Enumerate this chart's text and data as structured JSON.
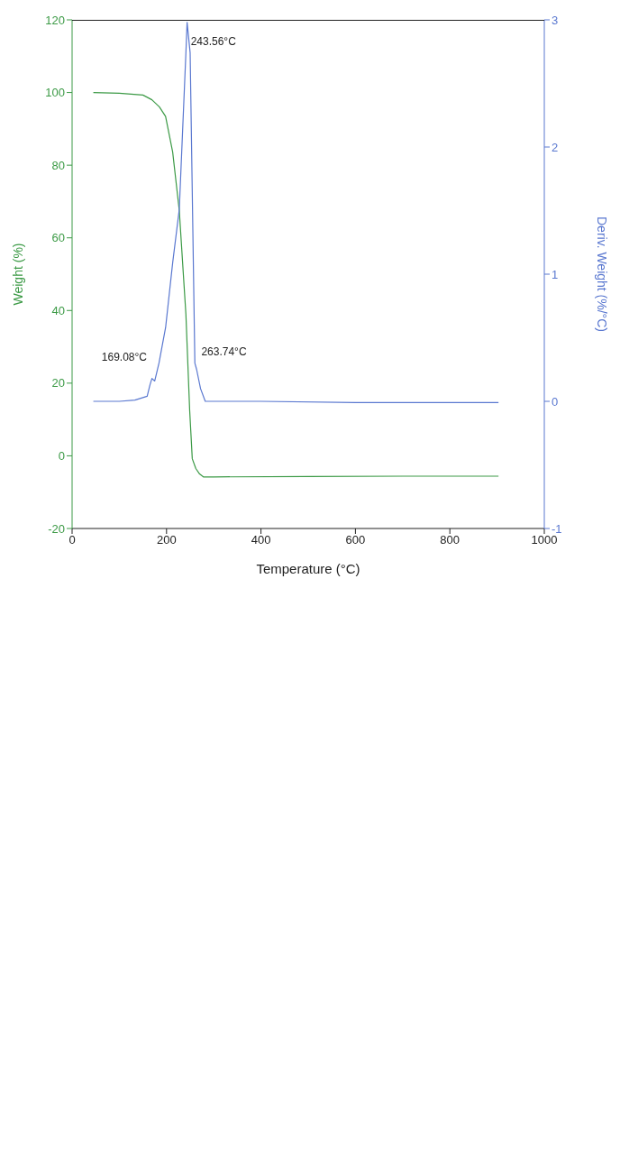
{
  "chart_data": {
    "type": "line",
    "xlabel": "Temperature (°C)",
    "ylabel": "Weight (%)",
    "y2label": "Deriv. Weight (%/°C)",
    "xlim": [
      0,
      1000
    ],
    "xticks": [
      0,
      200,
      400,
      600,
      800,
      1000
    ],
    "ylim": [
      -20,
      120
    ],
    "yticks": [
      -20,
      0,
      20,
      40,
      60,
      80,
      100,
      120
    ],
    "y2lim": [
      -1,
      3
    ],
    "y2ticks": [
      -1,
      0,
      1,
      2,
      3
    ],
    "grid": false,
    "legend": false,
    "series": [
      {
        "color": "#3c9a46",
        "x": [
          45,
          100,
          150,
          169,
          185,
          198,
          213,
          227,
          241,
          249,
          254.5,
          262,
          270,
          278,
          300,
          500,
          700,
          903
        ],
        "values": [
          100,
          99.8,
          99.3,
          98,
          96,
          93.4,
          83.6,
          67.5,
          39,
          12.5,
          -0.8,
          -3.5,
          -5,
          -5.8,
          -5.8,
          -5.7,
          -5.6,
          -5.6
        ]
      },
      {
        "color": "#5a78d0",
        "axis": "y2",
        "x": [
          45,
          100,
          133,
          159,
          165,
          169.08,
          175,
          184,
          198,
          213,
          227,
          241,
          243.56,
          250,
          260,
          263.74,
          272,
          282,
          400,
          600,
          800,
          903
        ],
        "values": [
          0,
          0,
          0.01,
          0.04,
          0.13,
          0.18,
          0.16,
          0.3,
          0.58,
          1.09,
          1.51,
          2.74,
          2.98,
          2.74,
          0.3,
          0.25,
          0.1,
          0,
          0,
          -0.01,
          -0.01,
          -0.01
        ]
      }
    ],
    "annotations": [
      "243.56°C",
      "169.08°C",
      "263.74°C"
    ]
  }
}
